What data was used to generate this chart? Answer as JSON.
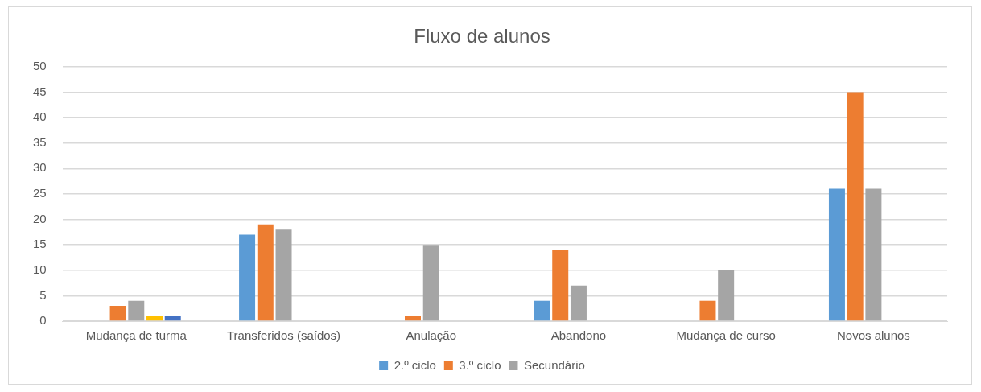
{
  "chart_data": {
    "type": "bar",
    "title": "Fluxo de alunos",
    "categories": [
      "Mudança de turma",
      "Transferidos (saídos)",
      "Anulação",
      "Abandono",
      "Mudança de curso",
      "Novos alunos"
    ],
    "series": [
      {
        "name": "2.º ciclo",
        "color": "#5b9bd5",
        "values": [
          0,
          17,
          0,
          4,
          0,
          26
        ]
      },
      {
        "name": "3.º ciclo",
        "color": "#ed7d31",
        "values": [
          3,
          19,
          1,
          14,
          4,
          45
        ]
      },
      {
        "name": "Secundário",
        "color": "#a5a5a5",
        "values": [
          4,
          18,
          15,
          7,
          10,
          26
        ]
      },
      {
        "color": "#ffc000",
        "values": [
          1,
          null,
          null,
          null,
          null,
          null
        ]
      },
      {
        "color": "#4472c4",
        "values": [
          1,
          null,
          null,
          null,
          null,
          null
        ]
      }
    ],
    "ylim": [
      0,
      50
    ],
    "yticks": [
      0,
      5,
      10,
      15,
      20,
      25,
      30,
      35,
      40,
      45,
      50
    ],
    "grid": "y",
    "legend": "bottom"
  }
}
